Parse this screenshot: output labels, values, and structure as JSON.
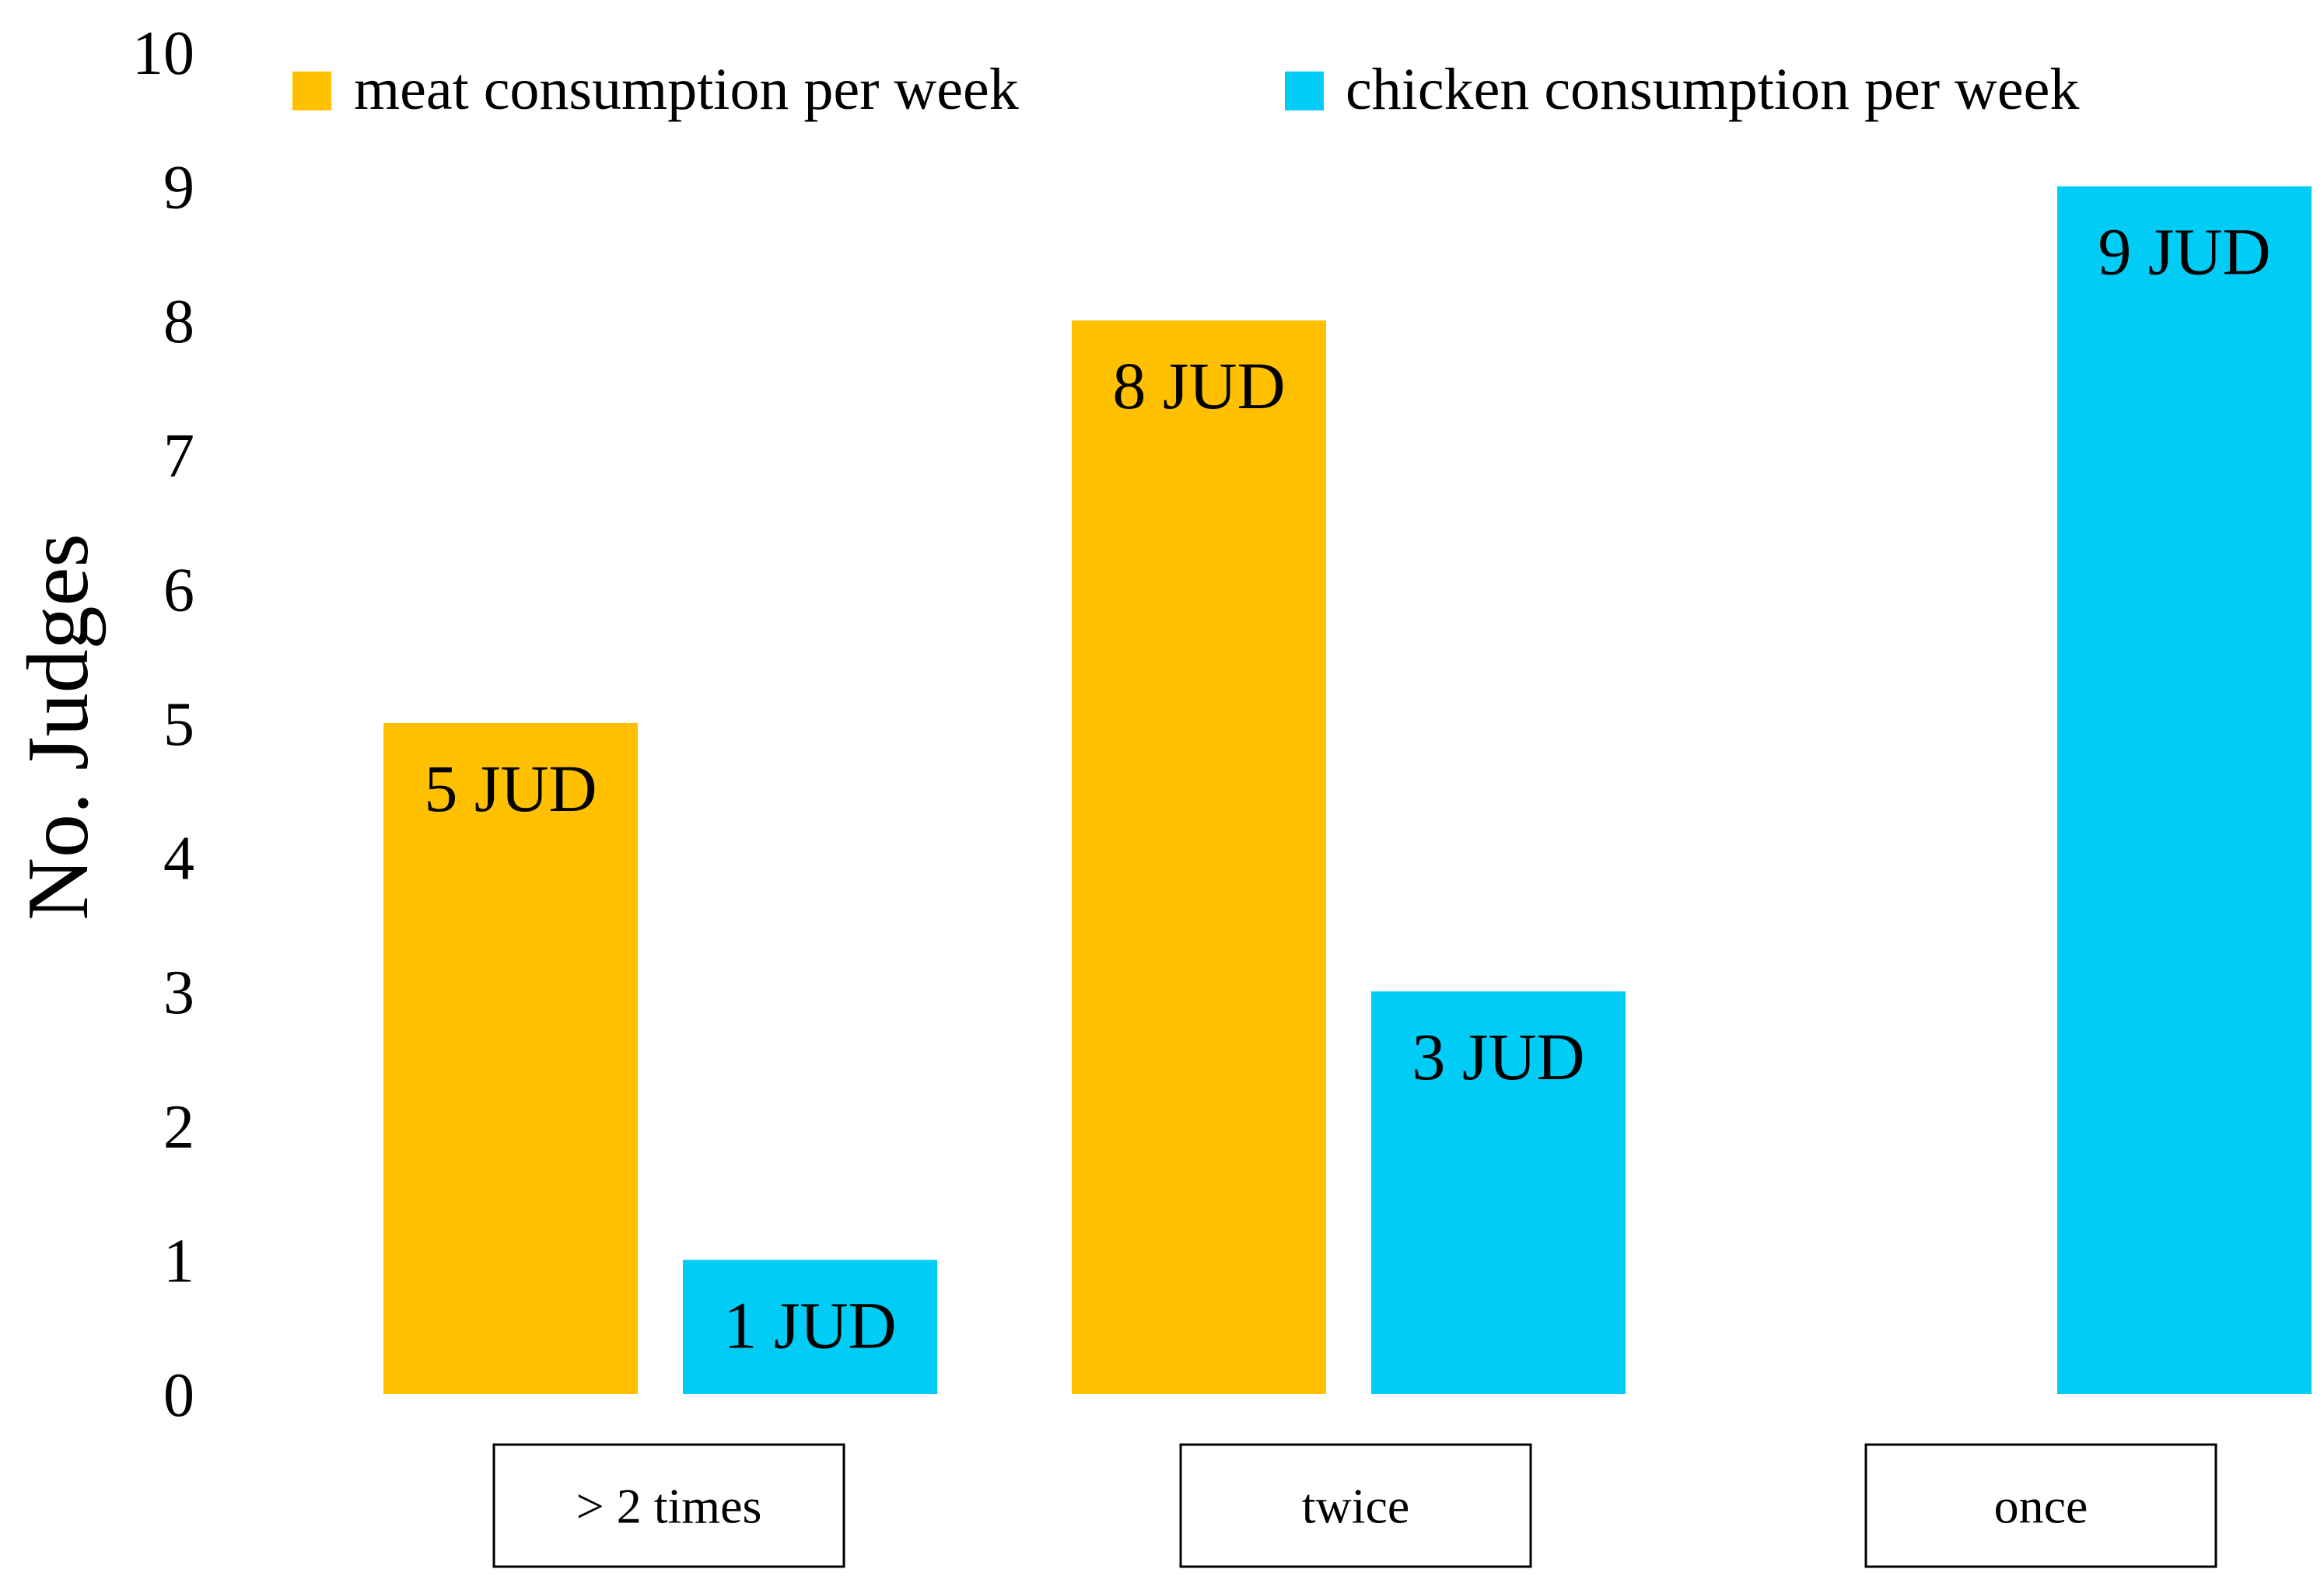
{
  "chart_data": {
    "type": "bar",
    "title": "",
    "xlabel": "",
    "ylabel": "No. Judges",
    "ylim": [
      0,
      10
    ],
    "yticks": [
      0,
      1,
      2,
      3,
      4,
      5,
      6,
      7,
      8,
      9,
      10
    ],
    "grid": false,
    "legend_position": "top",
    "categories": [
      "> 2 times",
      "twice",
      "once"
    ],
    "series": [
      {
        "name": "meat consumption per week",
        "color": "#FFC000",
        "values": [
          5,
          8,
          null
        ],
        "labels": [
          "5 JUD",
          "8 JUD",
          null
        ]
      },
      {
        "name": "chicken consumption per week",
        "color": "#00CCF5",
        "values": [
          1,
          3,
          9
        ],
        "labels": [
          "1 JUD",
          "3 JUD",
          "9 JUD"
        ]
      }
    ]
  }
}
